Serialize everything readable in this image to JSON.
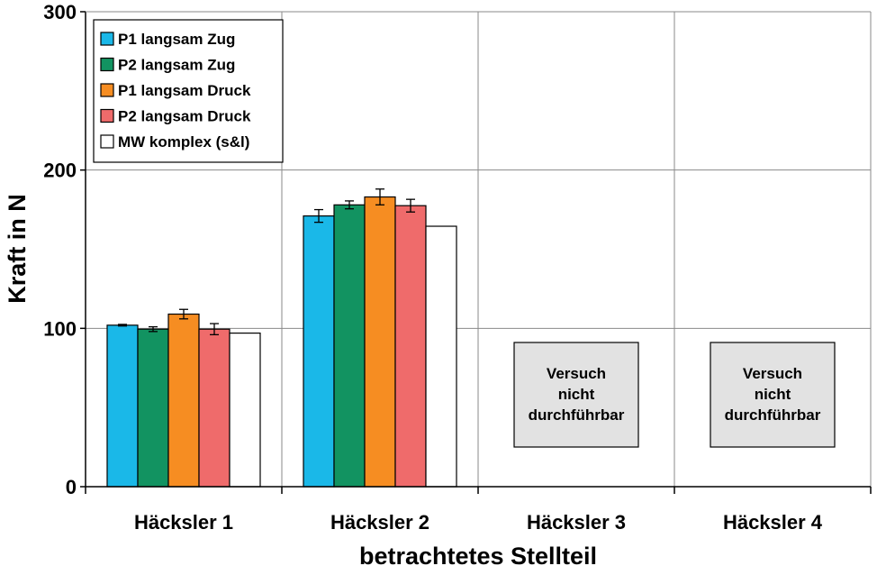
{
  "chart_data": {
    "type": "bar",
    "title": "",
    "xlabel": "betrachtetes Stellteil",
    "ylabel": "Kraft in N",
    "ylim": [
      0,
      300
    ],
    "yticks": [
      "0",
      "100",
      "200",
      "300"
    ],
    "ytick_values": [
      0,
      100,
      200,
      300
    ],
    "grid": true,
    "legend_position": "top-left",
    "categories": [
      "Häcksler 1",
      "Häcksler 2",
      "Häcksler 3",
      "Häcksler 4"
    ],
    "series": [
      {
        "name": "P1 langsam Zug",
        "color": "#1ab8e8",
        "values": [
          102,
          171,
          null,
          null
        ],
        "errors": [
          0.5,
          4,
          null,
          null
        ]
      },
      {
        "name": "P2 langsam Zug",
        "color": "#129361",
        "values": [
          99.5,
          178,
          null,
          null
        ],
        "errors": [
          1.5,
          2.5,
          null,
          null
        ]
      },
      {
        "name": "P1 langsam Druck",
        "color": "#f68d22",
        "values": [
          109,
          183,
          null,
          null
        ],
        "errors": [
          3,
          5,
          null,
          null
        ]
      },
      {
        "name": "P2 langsam Druck",
        "color": "#ef6b6b",
        "values": [
          99.5,
          177.5,
          null,
          null
        ],
        "errors": [
          3.5,
          4,
          null,
          null
        ]
      },
      {
        "name": "MW komplex (s&l)",
        "color": "#ffffff",
        "values": [
          97,
          164.5,
          null,
          null
        ],
        "errors": [
          null,
          null,
          null,
          null
        ]
      }
    ],
    "annotations": [
      {
        "category": "Häcksler 3",
        "lines": [
          "Versuch",
          "nicht",
          "durchführbar"
        ]
      },
      {
        "category": "Häcksler 4",
        "lines": [
          "Versuch",
          "nicht",
          "durchführbar"
        ]
      }
    ]
  }
}
